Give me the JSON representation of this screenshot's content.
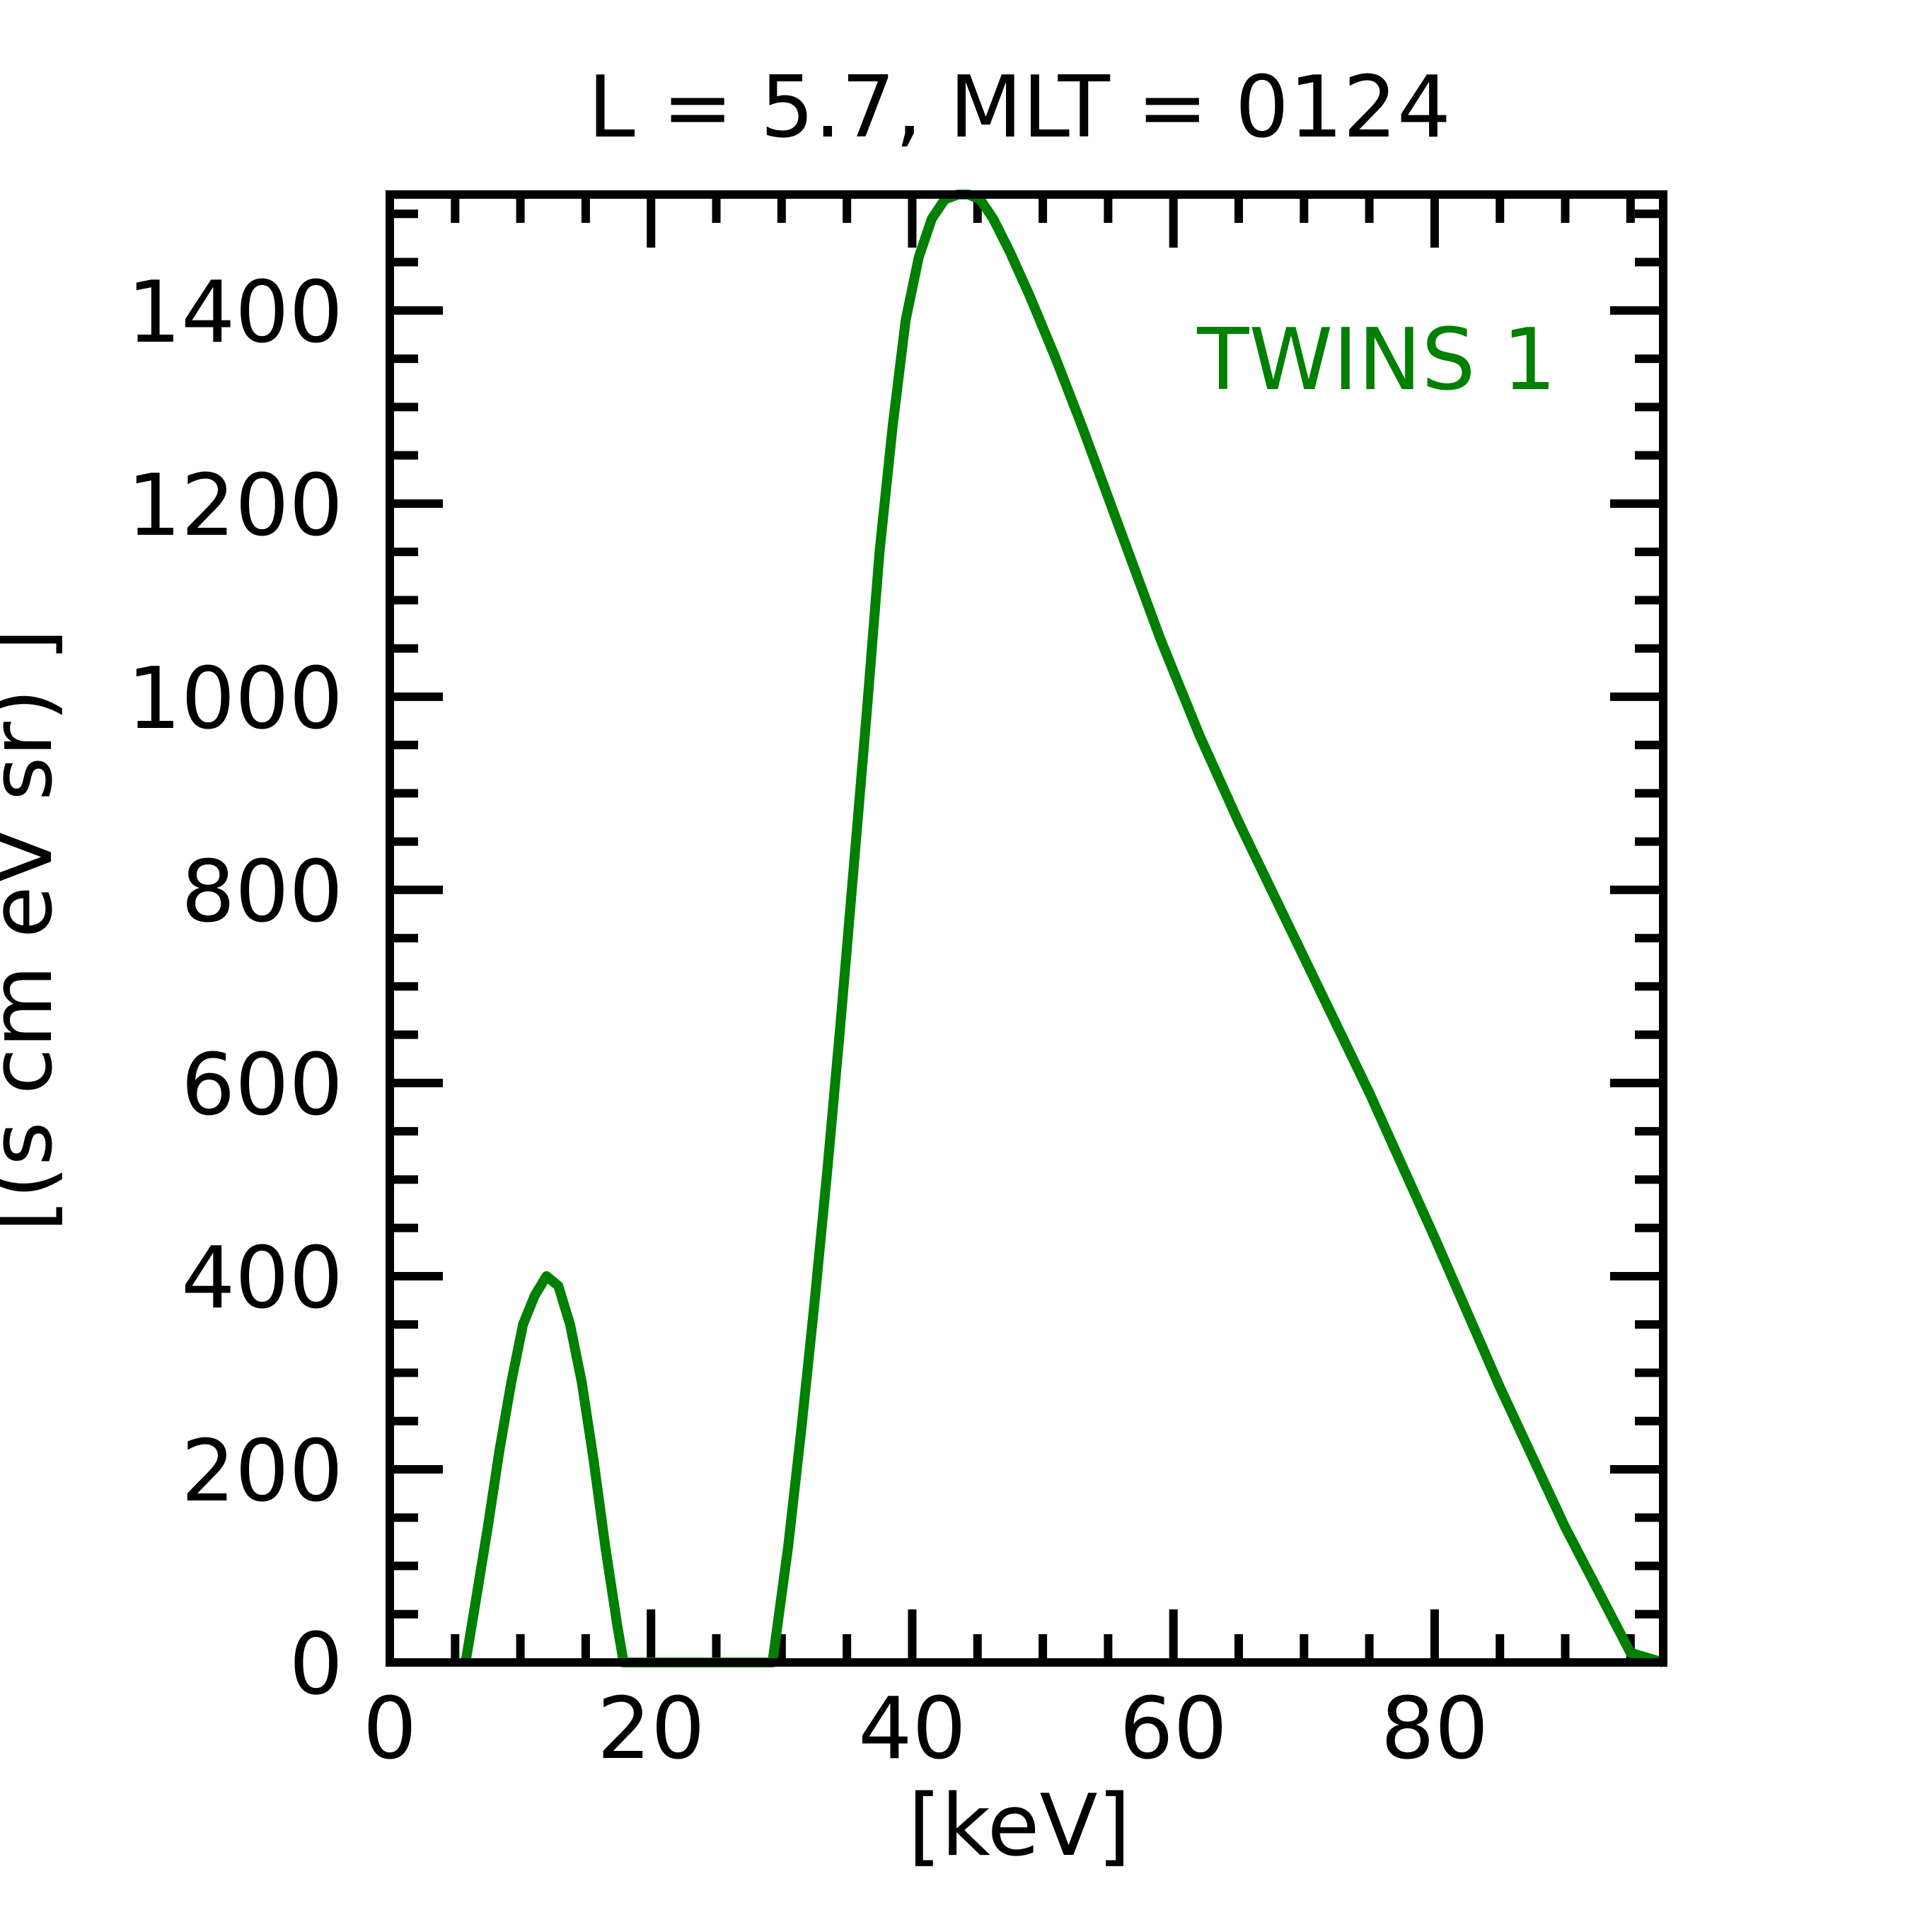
{
  "chart_data": {
    "type": "line",
    "title": "L =  5.7, MLT = 0124",
    "xlabel": "[keV]",
    "ylabel": "[(s cm eV sr)  ]",
    "xlim": [
      0,
      97.5
    ],
    "ylim": [
      0,
      1520
    ],
    "x_ticks": [
      0,
      20,
      40,
      60,
      80
    ],
    "x_tick_labels": [
      "0",
      "20",
      "40",
      "60",
      "80"
    ],
    "y_ticks": [
      0,
      200,
      400,
      600,
      800,
      1000,
      1200,
      1400
    ],
    "y_tick_labels": [
      "0",
      "200",
      "400",
      "600",
      "800",
      "1000",
      "1200",
      "1400"
    ],
    "x_minor_step": 5,
    "y_minor_step": 50,
    "grid": false,
    "legend": {
      "placement": "top-right"
    },
    "series": [
      {
        "name": "TWINS 1",
        "color": "#008000",
        "x": [
          5.8,
          6.6,
          7.5,
          8.4,
          9.3,
          10.2,
          11.1,
          12.0,
          12.9,
          13.8,
          14.7,
          15.6,
          16.5,
          17.4,
          17.9,
          18.2,
          20,
          23,
          26,
          29.3,
          29.7,
          30.5,
          31.5,
          32.5,
          33.5,
          34.5,
          35.5,
          36.5,
          37.5,
          38.5,
          39.5,
          40.5,
          41.5,
          42.5,
          43.5,
          44.3,
          45.2,
          46.2,
          47.5,
          49.0,
          51.0,
          53.0,
          56.0,
          59.0,
          62.0,
          65.0,
          70.0,
          75.0,
          80.0,
          85.0,
          90.0,
          95.0,
          97.5
        ],
        "y": [
          0,
          65,
          140,
          220,
          290,
          350,
          380,
          400,
          390,
          350,
          290,
          210,
          120,
          40,
          0,
          0,
          0,
          0,
          0,
          0,
          40,
          120,
          240,
          370,
          510,
          660,
          820,
          980,
          1150,
          1280,
          1390,
          1455,
          1495,
          1515,
          1520,
          1520,
          1515,
          1495,
          1460,
          1415,
          1350,
          1280,
          1170,
          1060,
          960,
          870,
          730,
          590,
          440,
          285,
          140,
          10,
          0
        ]
      }
    ]
  }
}
